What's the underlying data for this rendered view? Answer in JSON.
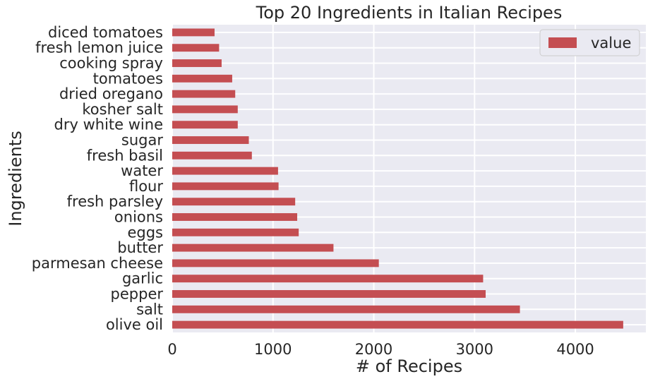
{
  "chart_data": {
    "type": "bar",
    "orientation": "horizontal",
    "title": "Top 20 Ingredients in Italian Recipes",
    "xlabel": "# of Recipes",
    "ylabel": "Ingredients",
    "xlim": [
      0,
      4700
    ],
    "xticks": [
      "0",
      "1000",
      "2000",
      "3000",
      "4000"
    ],
    "grid": true,
    "legend_position": "top-right",
    "bar_color": "#c44e52",
    "background_color": "#eaeaf2",
    "categories": [
      "olive oil",
      "salt",
      "pepper",
      "garlic",
      "parmesan cheese",
      "butter",
      "eggs",
      "onions",
      "fresh parsley",
      "flour",
      "water",
      "fresh basil",
      "sugar",
      "dry white wine",
      "kosher salt",
      "dried oregano",
      "tomatoes",
      "cooking spray",
      "fresh lemon juice",
      "diced tomatoes"
    ],
    "series": [
      {
        "name": "value",
        "values": [
          4475,
          3450,
          3110,
          3085,
          2050,
          1600,
          1255,
          1240,
          1220,
          1055,
          1050,
          790,
          760,
          650,
          650,
          625,
          595,
          490,
          465,
          420
        ]
      }
    ]
  }
}
